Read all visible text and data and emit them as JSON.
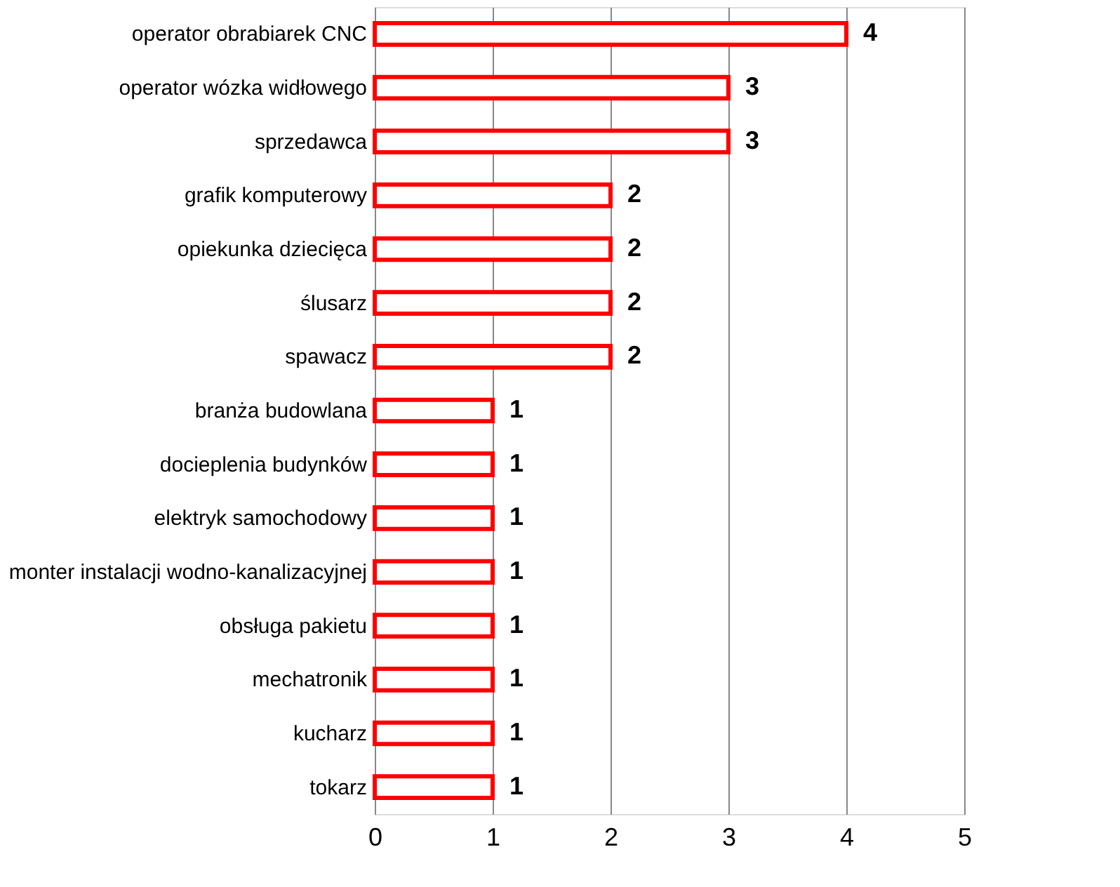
{
  "chart_data": {
    "type": "bar",
    "orientation": "horizontal",
    "categories": [
      "operator obrabiarek CNC",
      "operator wózka widłowego",
      "sprzedawca",
      "grafik komputerowy",
      "opiekunka dziecięca",
      "ślusarz",
      "spawacz",
      "branża budowlana",
      "docieplenia budynków",
      "elektryk samochodowy",
      "monter instalacji wodno-kanalizacyjnej",
      "obsługa pakietu",
      "mechatronik",
      "kucharz",
      "tokarz"
    ],
    "values": [
      4,
      3,
      3,
      2,
      2,
      2,
      2,
      1,
      1,
      1,
      1,
      1,
      1,
      1,
      1
    ],
    "color": "#ff0000",
    "xlim": [
      0,
      5
    ],
    "xticks": [
      0,
      1,
      2,
      3,
      4,
      5
    ],
    "grid": "x",
    "data_labels": true
  }
}
